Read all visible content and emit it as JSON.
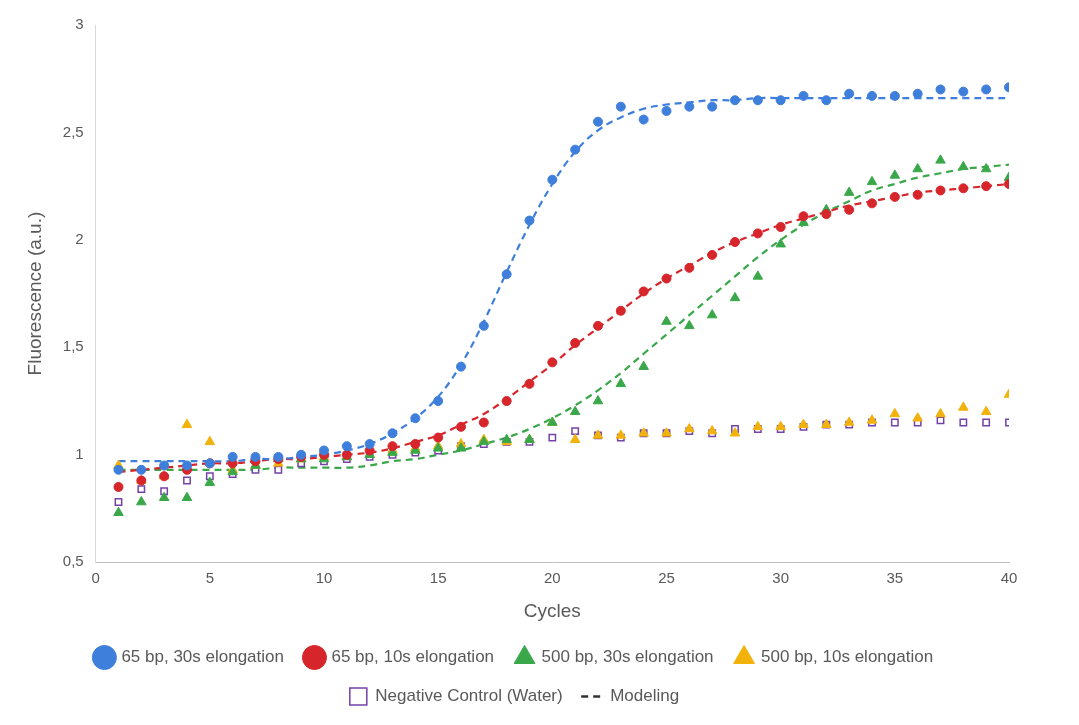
{
  "chart_data": {
    "type": "scatter",
    "x_label": "Cycles",
    "y_label": "Fluorescence (a.u.)",
    "x": [
      1,
      2,
      3,
      4,
      5,
      6,
      7,
      8,
      9,
      10,
      11,
      12,
      13,
      14,
      15,
      16,
      17,
      18,
      19,
      20,
      21,
      22,
      23,
      24,
      25,
      26,
      27,
      28,
      29,
      30,
      31,
      32,
      33,
      34,
      35,
      36,
      37,
      38,
      39,
      40
    ],
    "xlim": [
      0,
      40
    ],
    "xticks": [
      0,
      5,
      10,
      15,
      20,
      25,
      30,
      35,
      40
    ],
    "ylim": [
      0.5,
      3
    ],
    "yticks": [
      {
        "value": 0.5,
        "label": "0,5"
      },
      1,
      {
        "value": 1.5,
        "label": "1,5"
      },
      2,
      {
        "value": 2.5,
        "label": "2,5"
      },
      3
    ],
    "grid": false,
    "legend": "bottom",
    "series": [
      {
        "name": "65 bp, 30s elongation",
        "type": "scatter",
        "marker": "circle",
        "color": "#3f7fdc",
        "values": [
          0.93,
          0.93,
          0.95,
          0.95,
          0.96,
          0.99,
          0.99,
          0.99,
          1.0,
          1.02,
          1.04,
          1.05,
          1.1,
          1.17,
          1.25,
          1.41,
          1.6,
          1.84,
          2.09,
          2.28,
          2.42,
          2.55,
          2.62,
          2.56,
          2.6,
          2.62,
          2.62,
          2.65,
          2.65,
          2.65,
          2.67,
          2.65,
          2.68,
          2.67,
          2.67,
          2.68,
          2.7,
          2.69,
          2.7,
          2.71
        ]
      },
      {
        "name": "65 bp, 10s elongation",
        "type": "scatter",
        "marker": "circle",
        "color": "#d7262b",
        "values": [
          0.85,
          0.88,
          0.9,
          0.93,
          0.96,
          0.96,
          0.97,
          0.98,
          0.99,
          1.0,
          1.0,
          1.02,
          1.04,
          1.05,
          1.08,
          1.13,
          1.15,
          1.25,
          1.33,
          1.43,
          1.52,
          1.6,
          1.67,
          1.76,
          1.82,
          1.87,
          1.93,
          1.99,
          2.03,
          2.06,
          2.11,
          2.12,
          2.14,
          2.17,
          2.2,
          2.21,
          2.23,
          2.24,
          2.25,
          2.26
        ]
      },
      {
        "name": "500 bp, 30s elongation",
        "type": "scatter",
        "marker": "triangle",
        "color": "#3aa84a",
        "values": [
          0.73,
          0.78,
          0.8,
          0.8,
          0.87,
          0.92,
          0.95,
          0.98,
          0.98,
          0.98,
          0.99,
          1.0,
          1.01,
          1.02,
          1.03,
          1.03,
          1.06,
          1.07,
          1.07,
          1.15,
          1.2,
          1.25,
          1.33,
          1.41,
          1.62,
          1.6,
          1.65,
          1.73,
          1.83,
          1.98,
          2.08,
          2.14,
          2.22,
          2.27,
          2.3,
          2.33,
          2.37,
          2.34,
          2.33,
          2.29
        ]
      },
      {
        "name": "500 bp, 10s elongation",
        "type": "scatter",
        "marker": "triangle",
        "color": "#f2b20c",
        "values": [
          0.95,
          0.88,
          0.9,
          1.14,
          1.06,
          0.93,
          0.95,
          0.96,
          0.98,
          0.99,
          0.99,
          1.0,
          1.02,
          1.03,
          1.04,
          1.05,
          1.07,
          1.06,
          1.07,
          1.15,
          1.07,
          1.09,
          1.09,
          1.1,
          1.1,
          1.12,
          1.11,
          1.1,
          1.13,
          1.13,
          1.14,
          1.14,
          1.15,
          1.16,
          1.19,
          1.17,
          1.19,
          1.22,
          1.2,
          1.28
        ]
      },
      {
        "name": "Negative Control (Water)",
        "type": "scatter",
        "marker": "open_square",
        "color": "#7442a8",
        "values": [
          0.78,
          0.84,
          0.83,
          0.88,
          0.9,
          0.91,
          0.93,
          0.93,
          0.96,
          0.97,
          0.98,
          0.99,
          1.0,
          1.01,
          1.02,
          1.04,
          1.05,
          1.06,
          1.06,
          1.08,
          1.11,
          1.09,
          1.08,
          1.1,
          1.1,
          1.11,
          1.1,
          1.12,
          1.12,
          1.12,
          1.13,
          1.14,
          1.14,
          1.15,
          1.15,
          1.15,
          1.16,
          1.15,
          1.15,
          1.15
        ]
      },
      {
        "name": "Modeling",
        "type": "line",
        "line_style": "dashed",
        "color": "#3f7fdc",
        "values": [
          0.97,
          0.97,
          0.97,
          0.97,
          0.97,
          0.97,
          0.98,
          0.98,
          0.99,
          1.0,
          1.02,
          1.05,
          1.1,
          1.17,
          1.27,
          1.42,
          1.62,
          1.85,
          2.07,
          2.26,
          2.41,
          2.51,
          2.57,
          2.61,
          2.63,
          2.64,
          2.65,
          2.65,
          2.66,
          2.66,
          2.66,
          2.66,
          2.66,
          2.66,
          2.66,
          2.66,
          2.66,
          2.66,
          2.66,
          2.66
        ]
      },
      {
        "name": "Modeling",
        "type": "line",
        "line_style": "dashed",
        "color": "#d7262b",
        "values": [
          0.92,
          0.93,
          0.94,
          0.95,
          0.96,
          0.96,
          0.97,
          0.98,
          0.98,
          0.99,
          1.0,
          1.01,
          1.03,
          1.06,
          1.09,
          1.14,
          1.19,
          1.26,
          1.34,
          1.42,
          1.51,
          1.59,
          1.67,
          1.75,
          1.82,
          1.88,
          1.94,
          1.99,
          2.03,
          2.07,
          2.1,
          2.13,
          2.16,
          2.18,
          2.2,
          2.22,
          2.23,
          2.24,
          2.25,
          2.26
        ]
      },
      {
        "name": "Modeling",
        "type": "line",
        "line_style": "dashed",
        "color": "#3aa84a",
        "values": [
          0.93,
          0.93,
          0.93,
          0.93,
          0.93,
          0.93,
          0.93,
          0.94,
          0.94,
          0.94,
          0.94,
          0.95,
          0.97,
          0.98,
          1.0,
          1.02,
          1.05,
          1.08,
          1.12,
          1.17,
          1.23,
          1.3,
          1.38,
          1.47,
          1.56,
          1.65,
          1.74,
          1.83,
          1.92,
          2.0,
          2.07,
          2.13,
          2.18,
          2.23,
          2.26,
          2.29,
          2.31,
          2.33,
          2.34,
          2.35
        ]
      }
    ]
  }
}
